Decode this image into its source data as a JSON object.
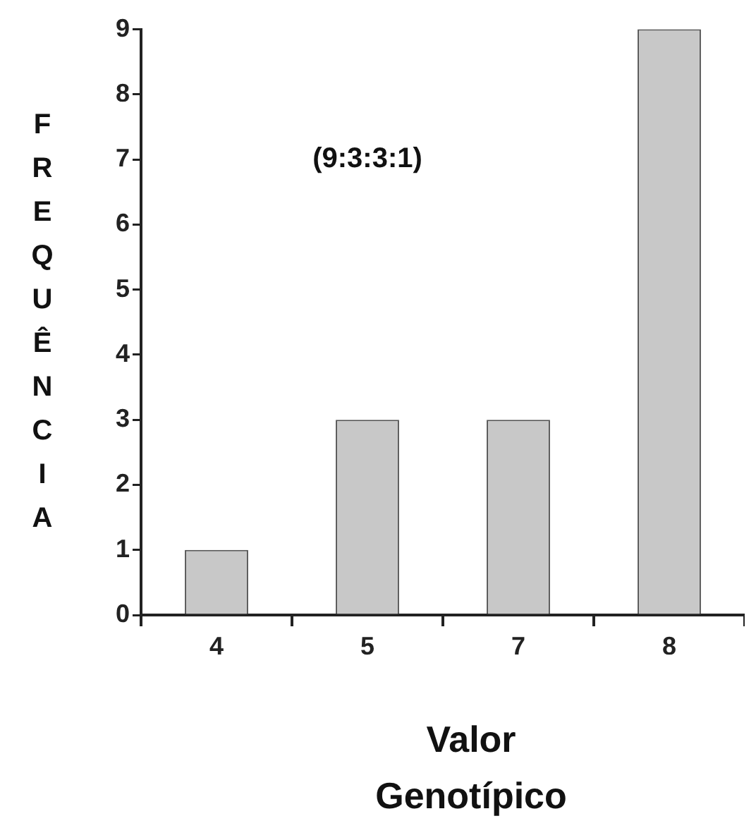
{
  "chart_data": {
    "type": "bar",
    "xlabel": "Valor Genotípico",
    "ylabel": "FREQUÊNCIA",
    "annotations": [
      "(9:3:3:1)"
    ],
    "categories": [
      "4",
      "5",
      "7",
      "8"
    ],
    "values": [
      1,
      3,
      3,
      9
    ],
    "color": "#c8c8c8",
    "ylim": [
      0,
      9
    ],
    "yticks": [
      0,
      1,
      2,
      3,
      4,
      5,
      6,
      7,
      8,
      9
    ],
    "grid": false,
    "legend": false
  }
}
